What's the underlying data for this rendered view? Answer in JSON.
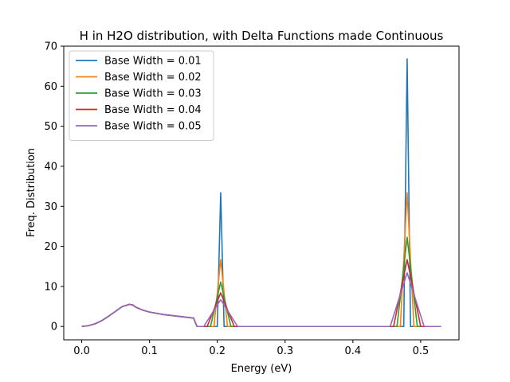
{
  "chart_data": {
    "type": "line",
    "title": "H in H2O distribution, with Delta Functions made Continuous",
    "xlabel": "Energy (eV)",
    "ylabel": "Freq. Distribution",
    "xlim": [
      -0.0265,
      0.5565
    ],
    "ylim": [
      -3.33,
      70
    ],
    "xticks": [
      0.0,
      0.1,
      0.2,
      0.3,
      0.4,
      0.5
    ],
    "xtick_labels": [
      "0.0",
      "0.1",
      "0.2",
      "0.3",
      "0.4",
      "0.5"
    ],
    "yticks": [
      0,
      10,
      20,
      30,
      40,
      50,
      60,
      70
    ],
    "ytick_labels": [
      "0",
      "10",
      "20",
      "30",
      "40",
      "50",
      "60",
      "70"
    ],
    "grid": false,
    "legend_position": "top-left",
    "base_curve": {
      "x": [
        0.0,
        0.01,
        0.02,
        0.03,
        0.04,
        0.05,
        0.06,
        0.07,
        0.075,
        0.08,
        0.09,
        0.1,
        0.11,
        0.12,
        0.13,
        0.14,
        0.15,
        0.16,
        0.165
      ],
      "y": [
        0.0,
        0.2,
        0.7,
        1.5,
        2.6,
        3.8,
        5.0,
        5.5,
        5.4,
        4.8,
        4.1,
        3.6,
        3.3,
        3.0,
        2.8,
        2.6,
        2.4,
        2.2,
        2.1
      ]
    },
    "peaks": [
      {
        "center": 0.205,
        "area": 0.334
      },
      {
        "center": 0.48,
        "area": 0.668
      }
    ],
    "series": [
      {
        "name": "Base Width = 0.01",
        "width": 0.01,
        "color": "#1f77b4",
        "peak_heights": [
          33.4,
          66.8
        ]
      },
      {
        "name": "Base Width = 0.02",
        "width": 0.02,
        "color": "#ff7f0e",
        "peak_heights": [
          16.7,
          33.4
        ]
      },
      {
        "name": "Base Width = 0.03",
        "width": 0.03,
        "color": "#2ca02c",
        "peak_heights": [
          11.1,
          22.3
        ]
      },
      {
        "name": "Base Width = 0.04",
        "width": 0.04,
        "color": "#d62728",
        "peak_heights": [
          8.4,
          16.7
        ]
      },
      {
        "name": "Base Width = 0.05",
        "width": 0.05,
        "color": "#9467bd",
        "peak_heights": [
          6.7,
          13.4
        ]
      }
    ]
  }
}
